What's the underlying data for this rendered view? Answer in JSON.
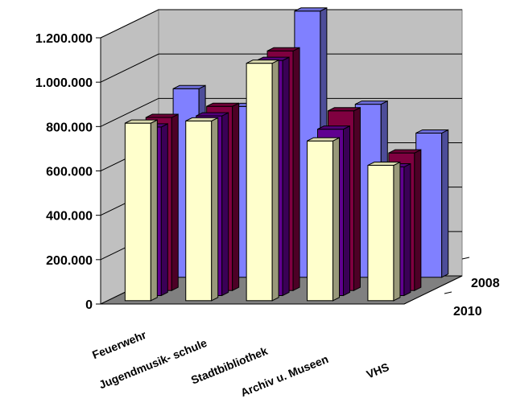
{
  "chart_data": {
    "type": "bar",
    "subtype": "3d-clustered-column",
    "title": "",
    "xlabel": "",
    "ylabel": "",
    "ylim": [
      0,
      1200000
    ],
    "yticks": [
      "0",
      "200.000",
      "400.000",
      "600.000",
      "800.000",
      "1.000.000",
      "1.200.000"
    ],
    "ytick_values": [
      0,
      200000,
      400000,
      600000,
      800000,
      1000000,
      1200000
    ],
    "categories": [
      "Feuerwehr",
      "Jugendmusik- schule",
      "Stadtbibliothek",
      "Archiv u. Museen",
      "VHS"
    ],
    "depth_labels": [
      "2008",
      "2010"
    ],
    "series": [
      {
        "values": [
          850000,
          770000,
          1200000,
          780000,
          650000
        ],
        "color": "#8080ff"
      },
      {
        "values": [
          780000,
          830000,
          1080000,
          810000,
          620000
        ],
        "color": "#800040"
      },
      {
        "values": [
          760000,
          810000,
          1060000,
          750000,
          580000
        ],
        "color": "#600090"
      },
      {
        "values": [
          800000,
          810000,
          1070000,
          720000,
          610000
        ],
        "color": "#ffffcc"
      }
    ],
    "grid": true,
    "legend": "none"
  }
}
